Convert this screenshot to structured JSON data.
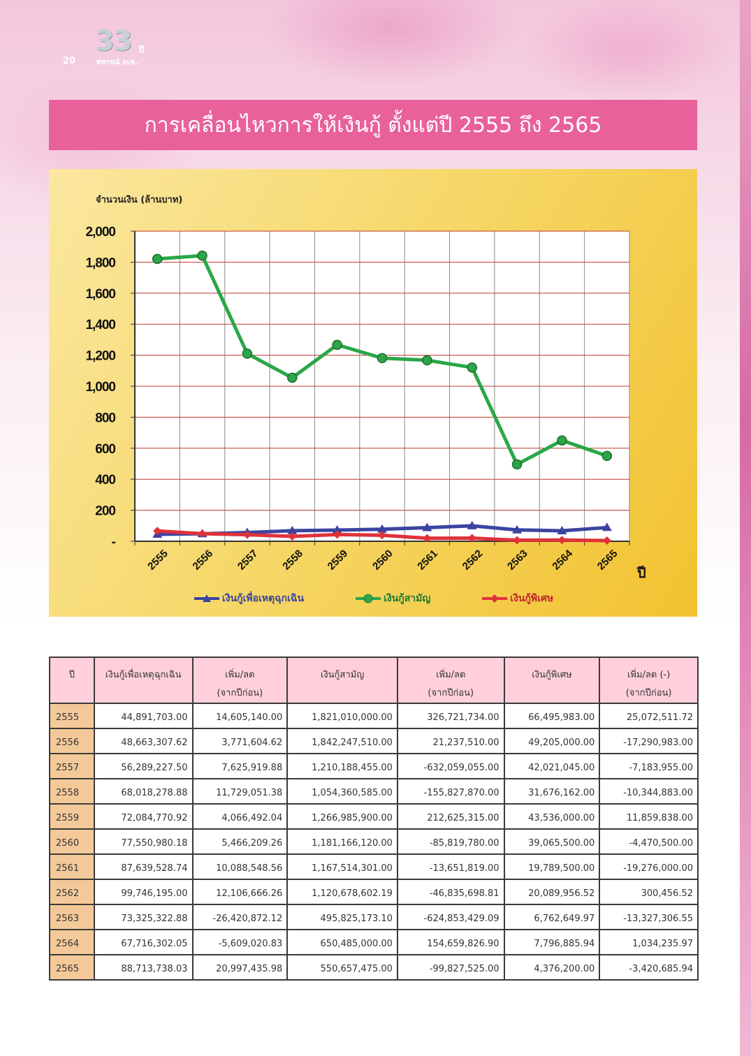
{
  "header": {
    "page_number": "20",
    "logo_number": "33",
    "logo_suffix": "ปี",
    "logo_org": "สหกรณ์ อบจ.",
    "title": "การเคลื่อนไหวการให้เงินกู้ ตั้งแต่ปี 2555 ถึง 2565"
  },
  "chart_data": {
    "type": "line",
    "ylabel": "จำนวนเงิน (ล้านบาท)",
    "xlabel": "ปี",
    "ylim": [
      0,
      2000
    ],
    "yticks": [
      "2,000",
      "1,800",
      "1,600",
      "1,400",
      "1,200",
      "1,000",
      "800",
      "600",
      "400",
      "200",
      "-"
    ],
    "ytick_values": [
      2000,
      1800,
      1600,
      1400,
      1200,
      1000,
      800,
      600,
      400,
      200,
      0
    ],
    "categories": [
      "2555",
      "2556",
      "2557",
      "2558",
      "2559",
      "2560",
      "2561",
      "2562",
      "2563",
      "2564",
      "2565"
    ],
    "grid": true,
    "legend_position": "bottom",
    "series": [
      {
        "name": "เงินกู้เพื่อเหตุฉุกเฉิน",
        "color": "#3b44a0",
        "marker": "triangle",
        "values": [
          44.89,
          48.66,
          56.29,
          68.02,
          72.08,
          77.55,
          87.64,
          99.75,
          73.33,
          67.72,
          88.71
        ]
      },
      {
        "name": "เงินกู้สามัญ",
        "color": "#2aa748",
        "marker": "circle",
        "values": [
          1821.01,
          1842.25,
          1210.19,
          1054.36,
          1266.99,
          1181.17,
          1167.51,
          1120.68,
          495.83,
          650.49,
          550.66
        ]
      },
      {
        "name": "เงินกู้พิเศษ",
        "color": "#e0323a",
        "marker": "diamond",
        "values": [
          66.5,
          49.21,
          42.02,
          31.68,
          43.54,
          39.07,
          19.79,
          20.09,
          6.76,
          7.8,
          4.38
        ]
      }
    ]
  },
  "table": {
    "headers": [
      {
        "main": "ปี",
        "sub": ""
      },
      {
        "main": "เงินกู้เพื่อเหตุฉุกเฉิน",
        "sub": ""
      },
      {
        "main": "เพิ่ม/ลด",
        "sub": "(จากปีก่อน)"
      },
      {
        "main": "เงินกู้สามัญ",
        "sub": ""
      },
      {
        "main": "เพิ่ม/ลด",
        "sub": "(จากปีก่อน)"
      },
      {
        "main": "เงินกู้พิเศษ",
        "sub": ""
      },
      {
        "main": "เพิ่ม/ลด (-)",
        "sub": "(จากปีก่อน)"
      }
    ],
    "rows": [
      [
        "2555",
        "44,891,703.00",
        "14,605,140.00",
        "1,821,010,000.00",
        "326,721,734.00",
        "66,495,983.00",
        "25,072,511.72"
      ],
      [
        "2556",
        "48,663,307.62",
        "3,771,604.62",
        "1,842,247,510.00",
        "21,237,510.00",
        "49,205,000.00",
        "-17,290,983.00"
      ],
      [
        "2557",
        "56,289,227.50",
        "7,625,919.88",
        "1,210,188,455.00",
        "-632,059,055.00",
        "42,021,045.00",
        "-7,183,955.00"
      ],
      [
        "2558",
        "68,018,278.88",
        "11,729,051.38",
        "1,054,360,585.00",
        "-155,827,870.00",
        "31,676,162.00",
        "-10,344,883.00"
      ],
      [
        "2559",
        "72,084,770.92",
        "4,066,492.04",
        "1,266,985,900.00",
        "212,625,315.00",
        "43,536,000.00",
        "11,859,838.00"
      ],
      [
        "2560",
        "77,550,980.18",
        "5,466,209.26",
        "1,181,166,120.00",
        "-85,819,780.00",
        "39,065,500.00",
        "-4,470,500.00"
      ],
      [
        "2561",
        "87,639,528.74",
        "10,088,548.56",
        "1,167,514,301.00",
        "-13,651,819.00",
        "19,789,500.00",
        "-19,276,000.00"
      ],
      [
        "2562",
        "99,746,195.00",
        "12,106,666.26",
        "1,120,678,602.19",
        "-46,835,698.81",
        "20,089,956.52",
        "300,456.52"
      ],
      [
        "2563",
        "73,325,322.88",
        "-26,420,872.12",
        "495,825,173.10",
        "-624,853,429.09",
        "6,762,649.97",
        "-13,327,306.55"
      ],
      [
        "2564",
        "67,716,302.05",
        "-5,609,020.83",
        "650,485,000.00",
        "154,659,826.90",
        "7,796,885.94",
        "1,034,235.97"
      ],
      [
        "2565",
        "88,713,738.03",
        "20,997,435.98",
        "550,657,475.00",
        "-99,827,525.00",
        "4,376,200.00",
        "-3,420,685.94"
      ]
    ]
  }
}
